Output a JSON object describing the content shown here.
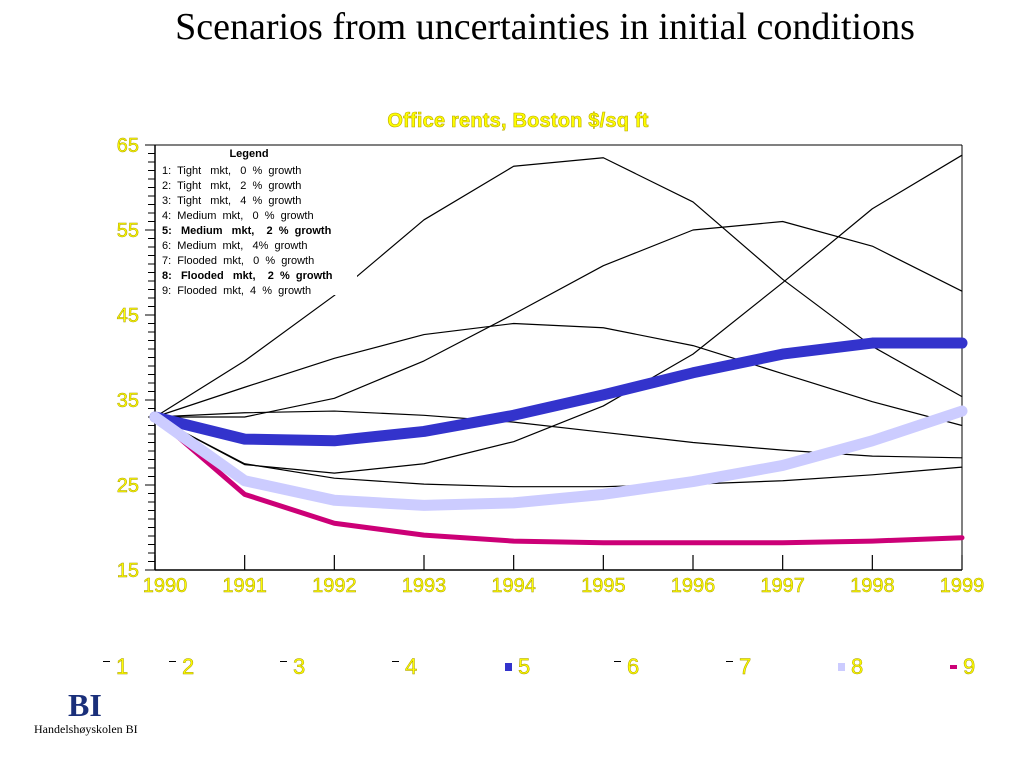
{
  "title": "Scenarios from uncertainties in initial conditions",
  "subtitle": "Office rents, Boston $/sq ft",
  "logo": {
    "mark": "BI",
    "text": "Handelshøyskolen BI"
  },
  "chart_data": {
    "type": "line",
    "ylim": [
      15,
      65
    ],
    "yticks": [
      "15",
      "25",
      "35",
      "45",
      "55",
      "65"
    ],
    "categories": [
      "1990",
      "1991",
      "1992",
      "1993",
      "1994",
      "1995",
      "1996",
      "1997",
      "1998",
      "1999"
    ],
    "legend": {
      "title": "Legend",
      "placement": "top-left",
      "entries": [
        "1:  Tight   mkt,   0  %  growth",
        "2:  Tight   mkt,   2  %  growth",
        "3:  Tight   mkt,   4  %  growth",
        "4:  Medium  mkt,   0  %  growth",
        "5:   Medium   mkt,    2  %  growth",
        "6:  Medium  mkt,   4%  growth",
        "7:  Flooded  mkt,   0  %  growth",
        "8:   Flooded   mkt,    2  %  growth",
        "9:  Flooded  mkt,  4  %  growth"
      ]
    },
    "series": [
      {
        "name": "1",
        "color": "#000000",
        "width": 1.2,
        "values": [
          33,
          33.5,
          33.7,
          33.2,
          32.4,
          31.2,
          30,
          29.1,
          28.4,
          28.2
        ]
      },
      {
        "name": "2",
        "color": "#000000",
        "width": 1.2,
        "values": [
          33,
          36.5,
          39.9,
          42.7,
          44,
          43.5,
          41.4,
          38.1,
          34.8,
          32
        ]
      },
      {
        "name": "3",
        "color": "#000000",
        "width": 1.2,
        "values": [
          33,
          39.6,
          47.3,
          56.2,
          62.5,
          63.5,
          58.3,
          49.2,
          41.3,
          35.4
        ]
      },
      {
        "name": "4",
        "color": "#000000",
        "width": 1.2,
        "values": [
          33,
          27.4,
          26.4,
          27.5,
          30.1,
          34.3,
          40.4,
          48.8,
          57.5,
          63.8
        ]
      },
      {
        "name": "5",
        "color": "#3333cc",
        "width": 11,
        "values": [
          33,
          30.4,
          30.2,
          31.3,
          33.2,
          35.6,
          38.2,
          40.4,
          41.7,
          41.7
        ]
      },
      {
        "name": "6",
        "color": "#000000",
        "width": 1.2,
        "values": [
          33,
          33,
          35.2,
          39.6,
          45.1,
          50.8,
          55,
          56,
          53.1,
          47.8
        ]
      },
      {
        "name": "7",
        "color": "#000000",
        "width": 1.2,
        "values": [
          33,
          27.5,
          25.8,
          25.1,
          24.8,
          24.8,
          25.1,
          25.5,
          26.2,
          27.1
        ]
      },
      {
        "name": "8",
        "color": "#ccccff",
        "width": 11,
        "values": [
          33,
          25.5,
          23.2,
          22.6,
          22.9,
          23.9,
          25.4,
          27.3,
          30.2,
          33.7
        ]
      },
      {
        "name": "9",
        "color": "#cc0077",
        "width": 5,
        "values": [
          33,
          23.9,
          20.5,
          19.1,
          18.4,
          18.2,
          18.2,
          18.2,
          18.4,
          18.8
        ]
      }
    ]
  }
}
